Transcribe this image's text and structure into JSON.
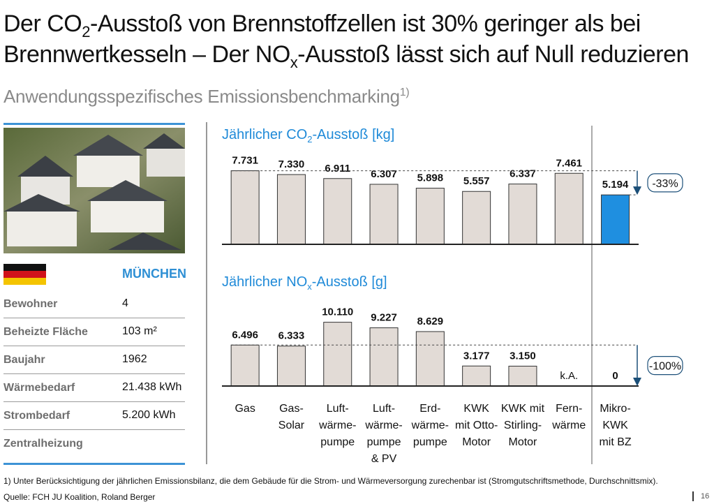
{
  "title": [
    "Der CO",
    "2",
    "-Ausstoß von Brennstoffzellen ist 30% geringer als bei",
    "Brennwertkesseln – Der NO",
    "x",
    "-Ausstoß lässt sich auf Null reduzieren"
  ],
  "subtitle": [
    "Anwendungsspezifisches Emissionsbenchmarking",
    "1)"
  ],
  "profile": {
    "city": "MÜNCHEN",
    "rows": [
      [
        "Bewohner",
        "4"
      ],
      [
        "Beheizte Fläche",
        "103 m²"
      ],
      [
        "Baujahr",
        "1962"
      ],
      [
        "Wärmebedarf",
        "21.438 kWh"
      ],
      [
        "Strombedarf",
        "5.200 kWh"
      ],
      [
        "Zentralheizung"
      ]
    ]
  },
  "chart_data": [
    {
      "type": "bar",
      "title": [
        "Jährlicher CO",
        "2",
        "-Ausstoß [kg]"
      ],
      "values": [
        7731,
        7330,
        6911,
        6307,
        5898,
        5557,
        6337,
        7461,
        5194
      ],
      "value_labels": [
        "7.731",
        "7.330",
        "6.911",
        "6.307",
        "5.898",
        "5.557",
        "6.337",
        "7.461",
        "5.194"
      ],
      "colors": [
        "#e2dbd6",
        "#e2dbd6",
        "#e2dbd6",
        "#e2dbd6",
        "#e2dbd6",
        "#e2dbd6",
        "#e2dbd6",
        "#e2dbd6",
        "#1f8fe0"
      ],
      "ylim": [
        0,
        11000
      ],
      "annotation": "-33%"
    },
    {
      "type": "bar",
      "title": [
        "Jährlicher NO",
        "x",
        "-Ausstoß [g]"
      ],
      "categories": [
        [
          "Gas"
        ],
        [
          "Gas-",
          "Solar"
        ],
        [
          "Luft-",
          "wärme-",
          "pumpe"
        ],
        [
          "Luft-",
          "wärme-",
          "pumpe",
          "& PV"
        ],
        [
          "Erd-",
          "wärme-",
          "pumpe"
        ],
        [
          "KWK",
          "mit Otto-",
          "Motor"
        ],
        [
          "KWK mit",
          "Stirling-",
          "Motor"
        ],
        [
          "Fern-",
          "wärme"
        ],
        [
          "Mikro-",
          "KWK",
          "mit BZ"
        ]
      ],
      "values": [
        6496,
        6333,
        10110,
        9227,
        8629,
        3177,
        3150,
        null,
        0
      ],
      "value_labels": [
        "6.496",
        "6.333",
        "10.110",
        "9.227",
        "8.629",
        "3.177",
        "3.150",
        "k.A.",
        "0"
      ],
      "colors": [
        "#e2dbd6",
        "#e2dbd6",
        "#e2dbd6",
        "#e2dbd6",
        "#e2dbd6",
        "#e2dbd6",
        "#e2dbd6",
        "#e2dbd6",
        "#1f8fe0"
      ],
      "ylim": [
        0,
        12500
      ],
      "annotation": "-100%"
    }
  ],
  "footnote": "1) Unter Berücksichtigung der jährlichen Emissionsbilanz, die dem Gebäude für die Strom- und Wärmeversorgung zurechenbar ist (Stromgutschriftsmethode, Durchschnittsmix).",
  "source": "Quelle: FCH JU Koalition, Roland Berger",
  "page_number": "16"
}
